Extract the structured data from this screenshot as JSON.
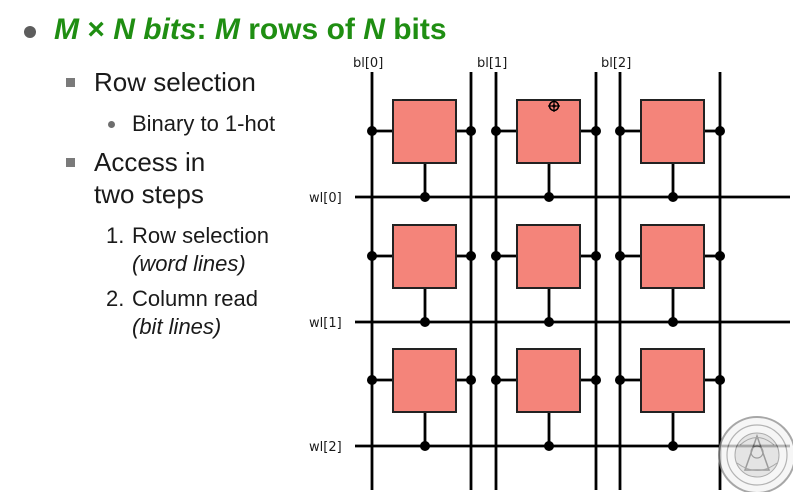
{
  "title": {
    "part1": "M",
    "part2": " × ",
    "part3": "N",
    "part4": " bits",
    "part5": ": ",
    "part6": "M",
    "part7": " rows of ",
    "part8": "N",
    "part9": " bits"
  },
  "bullets": {
    "row_selection": "Row selection",
    "binary_to_onehot": "Binary to 1-hot",
    "access_line1": "Access in",
    "access_line2": "two steps",
    "step1_num": "1.",
    "step1_label": "Row selection",
    "step1_note": "(word lines)",
    "step2_num": "2.",
    "step2_label": "Column read",
    "step2_note": "(bit lines)"
  },
  "diagram": {
    "bit_lines": [
      "bl[0]",
      "bl[1]",
      "bl[2]"
    ],
    "word_lines": [
      "wl[0]",
      "wl[1]",
      "wl[2]"
    ],
    "rows": 3,
    "cols": 3,
    "cell_color": "#f4847a",
    "seal_text": "SIGILLVM UNIVERSITATIS"
  }
}
